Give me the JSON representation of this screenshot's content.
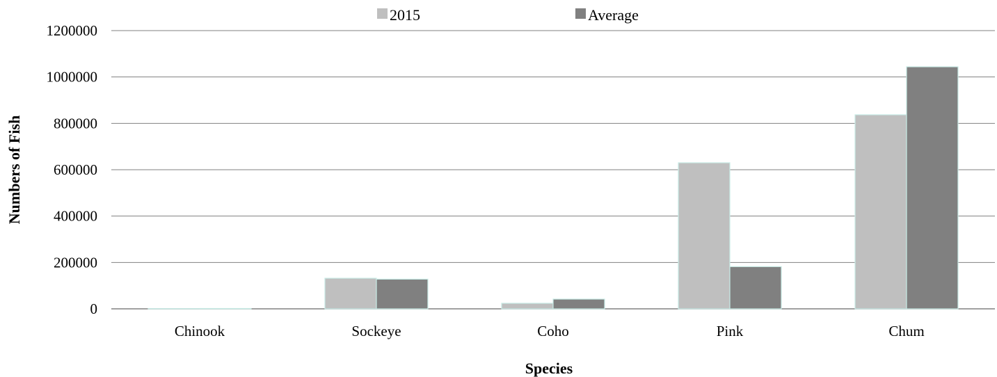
{
  "chart_data": {
    "type": "bar",
    "categories": [
      "Chinook",
      "Sockeye",
      "Coho",
      "Pink",
      "Chum"
    ],
    "series": [
      {
        "name": "2015",
        "values": [
          1000,
          132000,
          24000,
          630000,
          837000
        ]
      },
      {
        "name": "Average",
        "values": [
          1500,
          128000,
          42000,
          182000,
          1044000
        ]
      }
    ],
    "xlabel": "Species",
    "ylabel": "Numbers of Fish",
    "ylim": [
      0,
      1200000
    ],
    "yticks": [
      "0",
      "200000",
      "400000",
      "600000",
      "800000",
      "1000000",
      "1200000"
    ],
    "grid": true,
    "legend_position": "top"
  },
  "colors": {
    "series_2015": "#bfbfbf",
    "series_average": "#808080",
    "bar_edge": "#c8ebe6",
    "grid": "#808080"
  }
}
